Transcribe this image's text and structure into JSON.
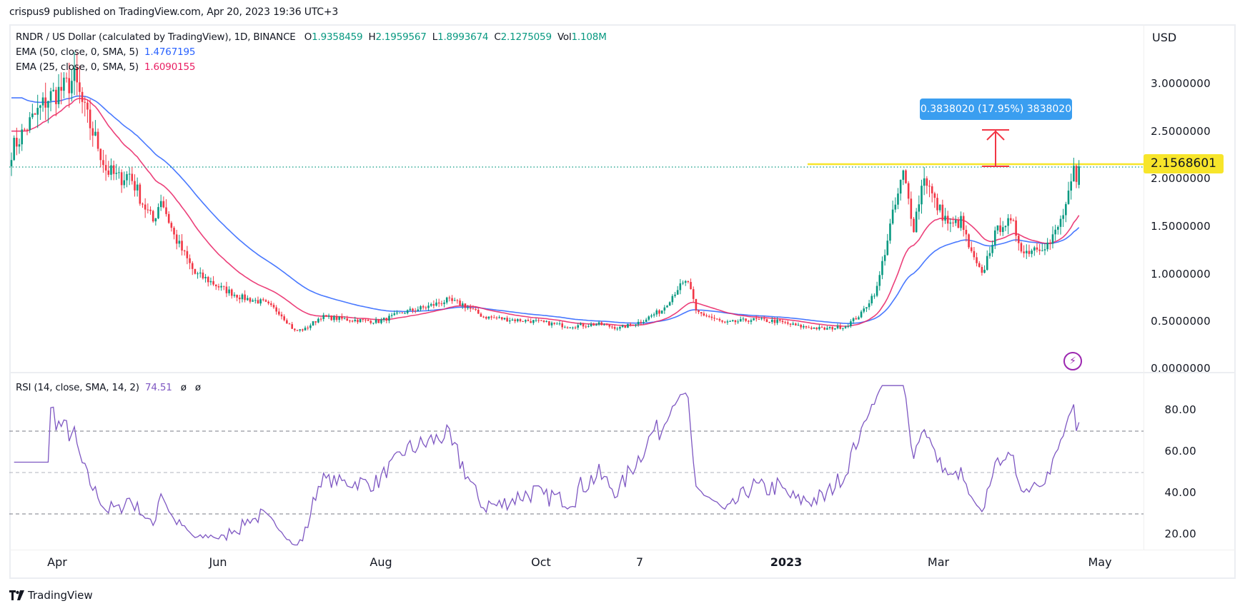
{
  "header": {
    "publish_text": "crispus9 published on TradingView.com, Apr 20, 2023 19:36 UTC+3"
  },
  "legend": {
    "symbol": "RNDR / US Dollar (calculated by TradingView), 1D, BINANCE",
    "open_label": "O",
    "open": "1.9358459",
    "high_label": "H",
    "high": "2.1959567",
    "low_label": "L",
    "low": "1.8993674",
    "close_label": "C",
    "close": "2.1275059",
    "vol_label": "Vol",
    "vol": "1.108M",
    "ema50_label": "EMA (50, close, 0, SMA, 5)",
    "ema50_value": "1.4767195",
    "ema25_label": "EMA (25, close, 0, SMA, 5)",
    "ema25_value": "1.6090155"
  },
  "rsi_legend": {
    "label": "RSI (14, close, SMA, 14, 2)",
    "value": "74.51",
    "extra1": "ø",
    "extra2": "ø"
  },
  "price_axis": {
    "currency": "USD",
    "ticks": [
      "3.0000000",
      "2.5000000",
      "2.0000000",
      "1.5000000",
      "1.0000000",
      "0.5000000",
      "0.0000000"
    ],
    "current_price_badge": "2.1568601"
  },
  "rsi_axis": {
    "ticks": [
      "80.00",
      "60.00",
      "40.00",
      "20.00"
    ]
  },
  "time_axis": {
    "labels": [
      {
        "text": "Apr",
        "x": 80,
        "bold": false
      },
      {
        "text": "Jun",
        "x": 305,
        "bold": false
      },
      {
        "text": "Aug",
        "x": 533,
        "bold": false
      },
      {
        "text": "Oct",
        "x": 757,
        "bold": false
      },
      {
        "text": "7",
        "x": 895,
        "bold": false
      },
      {
        "text": "2023",
        "x": 1100,
        "bold": true
      },
      {
        "text": "Mar",
        "x": 1313,
        "bold": false
      },
      {
        "text": "May",
        "x": 1539,
        "bold": false
      }
    ]
  },
  "measure_tooltip": {
    "text": "0.3838020 (17.95%) 3838020"
  },
  "footer": {
    "brand": "TradingView"
  },
  "colors": {
    "up": "#089981",
    "down": "#f23645",
    "ema50": "#2962ff",
    "ema25": "#e91e63",
    "rsi": "#7e57c2",
    "resistance": "#f7e52a",
    "arrow": "#f23645",
    "tooltip": "#3a9ef0"
  },
  "chart_data": [
    {
      "type": "candlestick",
      "title": "RNDR / US Dollar, 1D, BINANCE",
      "xlabel": "",
      "ylabel": "USD",
      "ylim": [
        0,
        3.4
      ],
      "x_range": [
        "2022-03-12",
        "2023-04-20"
      ],
      "x_ticks": [
        "Apr",
        "Jun",
        "Aug",
        "Oct",
        "7",
        "2023",
        "Mar",
        "May"
      ],
      "y_ticks": [
        0,
        0.5,
        1.0,
        1.5,
        2.0,
        2.5,
        3.0
      ],
      "last_ohlc": {
        "open": 1.9358459,
        "high": 2.1959567,
        "low": 1.8993674,
        "close": 2.1275059,
        "volume": "1.108M"
      },
      "close_anchors": [
        {
          "day": 0,
          "close": 2.3
        },
        {
          "day": 6,
          "close": 2.55
        },
        {
          "day": 14,
          "close": 2.85
        },
        {
          "day": 20,
          "close": 2.95
        },
        {
          "day": 24,
          "close": 3.05
        },
        {
          "day": 28,
          "close": 2.7
        },
        {
          "day": 33,
          "close": 2.35
        },
        {
          "day": 36,
          "close": 2.1
        },
        {
          "day": 41,
          "close": 2.0
        },
        {
          "day": 45,
          "close": 2.05
        },
        {
          "day": 50,
          "close": 1.75
        },
        {
          "day": 54,
          "close": 1.55
        },
        {
          "day": 57,
          "close": 1.8
        },
        {
          "day": 62,
          "close": 1.4
        },
        {
          "day": 66,
          "close": 1.2
        },
        {
          "day": 70,
          "close": 1.0
        },
        {
          "day": 74,
          "close": 0.95
        },
        {
          "day": 80,
          "close": 0.85
        },
        {
          "day": 88,
          "close": 0.75
        },
        {
          "day": 96,
          "close": 0.7
        },
        {
          "day": 102,
          "close": 0.6
        },
        {
          "day": 108,
          "close": 0.4
        },
        {
          "day": 112,
          "close": 0.42
        },
        {
          "day": 118,
          "close": 0.55
        },
        {
          "day": 128,
          "close": 0.52
        },
        {
          "day": 140,
          "close": 0.5
        },
        {
          "day": 150,
          "close": 0.6
        },
        {
          "day": 158,
          "close": 0.65
        },
        {
          "day": 166,
          "close": 0.72
        },
        {
          "day": 172,
          "close": 0.68
        },
        {
          "day": 180,
          "close": 0.55
        },
        {
          "day": 190,
          "close": 0.52
        },
        {
          "day": 200,
          "close": 0.5
        },
        {
          "day": 212,
          "close": 0.45
        },
        {
          "day": 224,
          "close": 0.47
        },
        {
          "day": 232,
          "close": 0.43
        },
        {
          "day": 240,
          "close": 0.5
        },
        {
          "day": 248,
          "close": 0.62
        },
        {
          "day": 254,
          "close": 0.85
        },
        {
          "day": 258,
          "close": 0.92
        },
        {
          "day": 261,
          "close": 0.6
        },
        {
          "day": 266,
          "close": 0.55
        },
        {
          "day": 272,
          "close": 0.48
        },
        {
          "day": 282,
          "close": 0.52
        },
        {
          "day": 292,
          "close": 0.5
        },
        {
          "day": 300,
          "close": 0.45
        },
        {
          "day": 310,
          "close": 0.42
        },
        {
          "day": 318,
          "close": 0.45
        },
        {
          "day": 324,
          "close": 0.58
        },
        {
          "day": 330,
          "close": 0.85
        },
        {
          "day": 335,
          "close": 1.5
        },
        {
          "day": 340,
          "close": 2.05
        },
        {
          "day": 344,
          "close": 1.5
        },
        {
          "day": 348,
          "close": 2.05
        },
        {
          "day": 352,
          "close": 1.75
        },
        {
          "day": 358,
          "close": 1.5
        },
        {
          "day": 362,
          "close": 1.55
        },
        {
          "day": 366,
          "close": 1.2
        },
        {
          "day": 370,
          "close": 0.98
        },
        {
          "day": 374,
          "close": 1.35
        },
        {
          "day": 378,
          "close": 1.55
        },
        {
          "day": 382,
          "close": 1.5
        },
        {
          "day": 386,
          "close": 1.22
        },
        {
          "day": 390,
          "close": 1.28
        },
        {
          "day": 396,
          "close": 1.32
        },
        {
          "day": 400,
          "close": 1.55
        },
        {
          "day": 403,
          "close": 1.8
        },
        {
          "day": 405,
          "close": 2.05
        },
        {
          "day": 406,
          "close": 1.93
        },
        {
          "day": 407,
          "close": 2.13
        }
      ]
    },
    {
      "type": "line",
      "title": "EMA (50, close, 0, SMA, 5)",
      "last_value": 1.4767195,
      "color": "#2962ff"
    },
    {
      "type": "line",
      "title": "EMA (25, close, 0, SMA, 5)",
      "last_value": 1.6090155,
      "color": "#e91e63"
    },
    {
      "type": "line",
      "title": "RSI (14, close, SMA, 14, 2)",
      "last_value": 74.51,
      "ylim": [
        10,
        95
      ],
      "y_ticks": [
        20,
        40,
        60,
        80
      ],
      "bands": [
        30,
        50,
        70
      ]
    },
    {
      "type": "annotation",
      "resistance_level": 2.1568601,
      "measure": {
        "delta": 0.383802,
        "percent": 17.95,
        "from": 2.1568601,
        "to": 2.54
      }
    }
  ]
}
